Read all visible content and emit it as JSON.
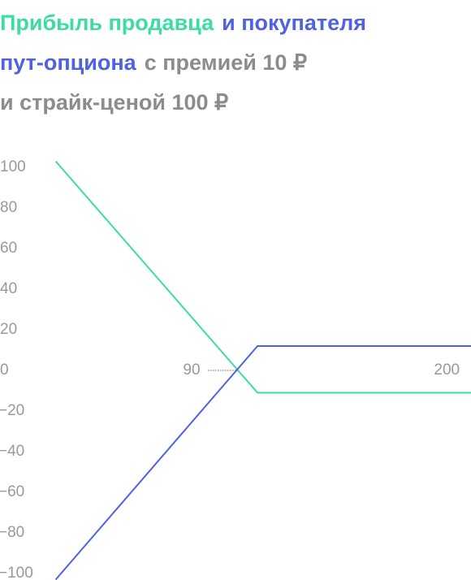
{
  "chart_data": {
    "type": "line",
    "title": [
      [
        {
          "text": "Прибыль продавца",
          "color": "#3ddba6"
        },
        {
          "text": "и покупателя",
          "color": "#4f62e0"
        }
      ],
      [
        {
          "text": "пут-опциона",
          "color": "#4f62e0"
        },
        {
          "text": "с премией 10 ₽",
          "color": "#8c8c8c"
        }
      ],
      [
        {
          "text": "и страйк-ценой 100 ₽",
          "color": "#8c8c8c"
        }
      ]
    ],
    "x": [
      30,
      117,
      209
    ],
    "series": [
      {
        "color": "#3ddba6",
        "values": [
          103,
          -11,
          -11
        ]
      },
      {
        "color": "#4f62e0",
        "values": [
          -103,
          12,
          12
        ]
      }
    ],
    "xlim": [
      6,
      209
    ],
    "ylim": [
      -103,
      106
    ],
    "xticks": [
      90,
      200
    ],
    "yticks": [
      100,
      80,
      60,
      40,
      20,
      0,
      {
        "value": -20,
        "label": "−20"
      },
      {
        "value": -40,
        "label": "−40"
      },
      {
        "value": -60,
        "label": "−60"
      },
      {
        "value": -80,
        "label": "−80"
      },
      {
        "value": -100,
        "label": "−100"
      }
    ]
  }
}
